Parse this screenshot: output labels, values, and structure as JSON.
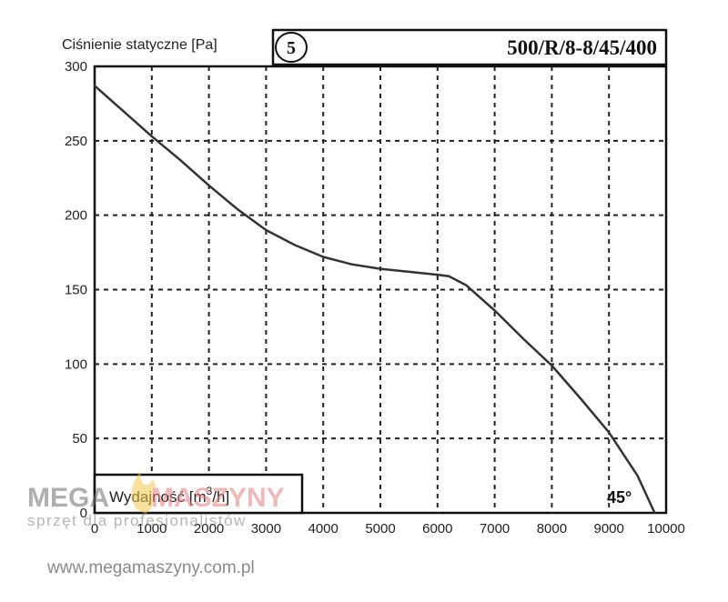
{
  "chart_data": {
    "type": "line",
    "title": "500/R/8-8/45/400",
    "badge": "5",
    "ylabel": "Ciśnienie statyczne [Pa]",
    "xlabel_prefix": "Wydajność [m",
    "xlabel_sup": "3",
    "xlabel_suffix": "/h]",
    "annotation": "45°",
    "xlim": [
      0,
      10000
    ],
    "ylim": [
      0,
      300
    ],
    "x_ticks": [
      "0",
      "1000",
      "2000",
      "3000",
      "4000",
      "5000",
      "6000",
      "7000",
      "8000",
      "9000",
      "10000"
    ],
    "y_ticks": [
      "300",
      "250",
      "200",
      "150",
      "100",
      "50",
      "0"
    ],
    "grid": true,
    "series": [
      {
        "color": "#333333",
        "x": [
          0,
          500,
          1000,
          1500,
          2000,
          2500,
          3000,
          3500,
          4000,
          4500,
          5000,
          5500,
          6000,
          6200,
          6500,
          7000,
          7500,
          8000,
          8500,
          9000,
          9500,
          9800
        ],
        "y": [
          287,
          270,
          253,
          237,
          220,
          204,
          190,
          180,
          172,
          167,
          164,
          162,
          160,
          159,
          153,
          136,
          117,
          99,
          77,
          54,
          25,
          0
        ]
      }
    ]
  },
  "watermark": {
    "brand_left": "MEGA",
    "brand_right": "MASZYNY",
    "tagline": "sprzęt dla profesjonalistów",
    "url": "www.megamaszyny.com.pl"
  }
}
